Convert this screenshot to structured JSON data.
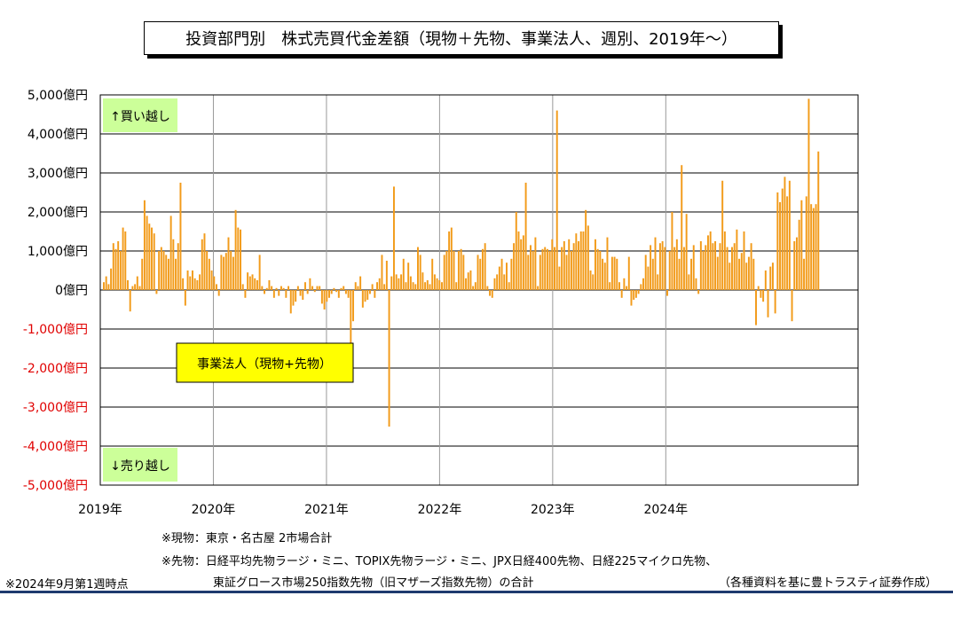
{
  "title": "投資部門別　株式売買代金差額（現物＋先物、事業法人、週別、2019年～）",
  "chart_data": {
    "type": "bar",
    "series": [
      {
        "name": "事業法人（現物+先物）",
        "color": "#f29b1a"
      }
    ],
    "y_ticks": [
      "5,000億円",
      "4,000億円",
      "3,000億円",
      "2,000億円",
      "1,000億円",
      "0億円",
      "-1,000億円",
      "-2,000億円",
      "-3,000億円",
      "-4,000億円",
      "-5,000億円"
    ],
    "x_ticks": [
      "2019年",
      "2020年",
      "2021年",
      "2022年",
      "2023年",
      "2024年"
    ],
    "ylim": [
      -5000,
      5000
    ],
    "x_start": "2019-01",
    "grid": true,
    "annotations": {
      "buy": "↑買い越し",
      "sell": "↓売り越し"
    },
    "annotation_color": "#ccff99",
    "legend_color": "#ffff00",
    "negative_tick_color": "#e00000",
    "values": [
      200,
      350,
      150,
      550,
      1200,
      1050,
      1250,
      1000,
      1600,
      1500,
      250,
      -550,
      100,
      150,
      350,
      100,
      800,
      2300,
      1900,
      1700,
      1600,
      1450,
      -100,
      1000,
      1100,
      1000,
      900,
      800,
      1900,
      1300,
      800,
      1200,
      2750,
      300,
      -400,
      500,
      350,
      500,
      300,
      250,
      400,
      1300,
      1450,
      1000,
      800,
      500,
      350,
      150,
      -150,
      900,
      850,
      950,
      1350,
      1000,
      850,
      2050,
      1600,
      1550,
      150,
      -200,
      450,
      350,
      400,
      300,
      250,
      900,
      100,
      -100,
      50,
      250,
      100,
      -200,
      50,
      -150,
      100,
      50,
      -200,
      100,
      -600,
      -400,
      -300,
      100,
      -150,
      -250,
      200,
      -100,
      300,
      100,
      -50,
      100,
      100,
      -350,
      -500,
      -300,
      -200,
      -100,
      50,
      -50,
      -200,
      50,
      100,
      -100,
      -200,
      -1400,
      -800,
      200,
      100,
      350,
      -450,
      -300,
      -250,
      -100,
      150,
      -200,
      200,
      300,
      900,
      150,
      750,
      -3500,
      350,
      2650,
      400,
      300,
      400,
      800,
      200,
      700,
      350,
      200,
      150,
      1100,
      900,
      450,
      200,
      250,
      150,
      800,
      400,
      300,
      250,
      200,
      900,
      1000,
      1500,
      1600,
      1000,
      200,
      1000,
      1050,
      900,
      300,
      450,
      500,
      100,
      200,
      900,
      800,
      1050,
      1200,
      100,
      -150,
      -200,
      300,
      400,
      600,
      800,
      400,
      700,
      200,
      800,
      1200,
      2000,
      1500,
      1300,
      1400,
      2750,
      900,
      1150,
      1000,
      1350,
      100,
      900,
      1050,
      1100,
      1050,
      1000,
      1300,
      1100,
      4600,
      600,
      1100,
      1250,
      900,
      1300,
      1000,
      1200,
      1450,
      1250,
      1500,
      1500,
      2050,
      1650,
      500,
      400,
      1300,
      1050,
      1000,
      800,
      700,
      1350,
      200,
      850,
      850,
      800,
      200,
      -200,
      300,
      100,
      850,
      -400,
      -250,
      -200,
      -100,
      150,
      300,
      900,
      600,
      1150,
      800,
      1350,
      400,
      1200,
      1250,
      1100,
      -150,
      1000,
      2000,
      1100,
      1300,
      800,
      3200,
      1100,
      1950,
      400,
      800,
      1150,
      300,
      -100,
      1250,
      1000,
      1150,
      1400,
      1500,
      1200,
      1250,
      850,
      1200,
      2800,
      1500,
      1100,
      700,
      1100,
      1200,
      1550,
      800,
      950,
      1500,
      700,
      850,
      1200,
      800,
      -900,
      100,
      -200,
      -300,
      500,
      -700,
      600,
      700,
      -600,
      2500,
      2250,
      2600,
      2900,
      2400,
      2800,
      -800,
      1250,
      1350,
      1800,
      2300,
      800,
      2400,
      4900,
      2200,
      2100,
      2200,
      3550
    ]
  },
  "legend_label": "事業法人（現物+先物）",
  "notes": {
    "spot": "※現物：東京・名古屋 2市場合計",
    "futures_1": "※先物：日経平均先物ラージ・ミニ、TOPIX先物ラージ・ミニ、JPX日経400先物、日経225マイクロ先物、",
    "futures_2": "東証グロース市場250指数先物（旧マザーズ指数先物）の合計",
    "as_of": "※2024年9月第1週時点",
    "source": "（各種資料を基に豊トラスティ証券作成）"
  }
}
